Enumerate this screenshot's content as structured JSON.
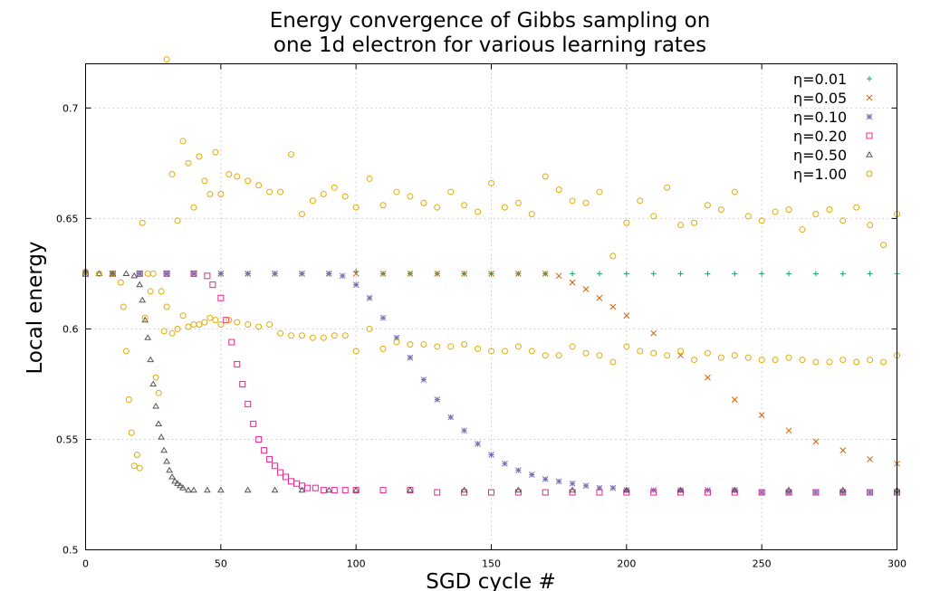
{
  "chart_data": {
    "type": "scatter",
    "title_lines": [
      "Energy convergence of Gibbs sampling on",
      "one 1d electron for various learning rates"
    ],
    "xlabel": "SGD cycle #",
    "ylabel": "Local energy",
    "xlim": [
      0,
      300
    ],
    "ylim": [
      0.5,
      0.72
    ],
    "x_ticks": [
      0,
      50,
      100,
      150,
      200,
      250,
      300
    ],
    "y_ticks": [
      0.5,
      0.55,
      0.6,
      0.65,
      0.7
    ],
    "x_tick_labels": [
      "0",
      "50",
      "100",
      "150",
      "200",
      "250",
      "300"
    ],
    "y_tick_labels": [
      "0.5",
      "0.55",
      "0.6",
      "0.65",
      "0.7"
    ],
    "grid": true,
    "legend_position": "top-right",
    "series": [
      {
        "name": "η=0.01",
        "marker": "plus",
        "color": "#1b9e77",
        "x": [
          0,
          10,
          20,
          30,
          40,
          50,
          60,
          70,
          80,
          90,
          100,
          110,
          120,
          130,
          140,
          150,
          160,
          170,
          180,
          190,
          200,
          210,
          220,
          230,
          240,
          250,
          260,
          270,
          280,
          290,
          300
        ],
        "y": [
          0.626,
          0.625,
          0.625,
          0.625,
          0.625,
          0.625,
          0.625,
          0.625,
          0.625,
          0.625,
          0.626,
          0.625,
          0.625,
          0.625,
          0.625,
          0.625,
          0.625,
          0.625,
          0.625,
          0.625,
          0.625,
          0.625,
          0.625,
          0.625,
          0.625,
          0.625,
          0.625,
          0.625,
          0.625,
          0.625,
          0.625
        ]
      },
      {
        "name": "η=0.05",
        "marker": "cross",
        "color": "#d95f02",
        "x": [
          0,
          10,
          20,
          30,
          40,
          50,
          60,
          70,
          80,
          90,
          100,
          110,
          120,
          130,
          140,
          150,
          160,
          170,
          175,
          180,
          185,
          190,
          195,
          200,
          210,
          220,
          230,
          240,
          250,
          260,
          270,
          280,
          290,
          300
        ],
        "y": [
          0.625,
          0.625,
          0.625,
          0.625,
          0.625,
          0.625,
          0.625,
          0.625,
          0.625,
          0.625,
          0.625,
          0.625,
          0.625,
          0.625,
          0.625,
          0.625,
          0.625,
          0.625,
          0.624,
          0.621,
          0.618,
          0.614,
          0.61,
          0.606,
          0.598,
          0.588,
          0.578,
          0.568,
          0.561,
          0.554,
          0.549,
          0.545,
          0.541,
          0.539
        ]
      },
      {
        "name": "η=0.10",
        "marker": "star",
        "color": "#7570b3",
        "x": [
          0,
          10,
          20,
          30,
          40,
          50,
          60,
          70,
          80,
          90,
          95,
          100,
          105,
          110,
          115,
          120,
          125,
          130,
          135,
          140,
          145,
          150,
          155,
          160,
          165,
          170,
          175,
          180,
          185,
          190,
          195,
          200,
          210,
          220,
          230,
          240,
          250,
          260,
          270,
          280,
          290,
          300
        ],
        "y": [
          0.625,
          0.625,
          0.625,
          0.625,
          0.625,
          0.625,
          0.625,
          0.625,
          0.625,
          0.625,
          0.624,
          0.62,
          0.614,
          0.605,
          0.596,
          0.587,
          0.577,
          0.568,
          0.56,
          0.554,
          0.548,
          0.543,
          0.539,
          0.536,
          0.534,
          0.532,
          0.531,
          0.53,
          0.529,
          0.528,
          0.528,
          0.527,
          0.527,
          0.527,
          0.527,
          0.527,
          0.526,
          0.526,
          0.526,
          0.526,
          0.526,
          0.526
        ]
      },
      {
        "name": "η=0.20",
        "marker": "square",
        "color": "#e7298a",
        "x": [
          0,
          10,
          20,
          30,
          40,
          45,
          47,
          50,
          52,
          54,
          56,
          58,
          60,
          62,
          64,
          66,
          68,
          70,
          72,
          74,
          76,
          78,
          80,
          82,
          85,
          88,
          92,
          96,
          100,
          110,
          120,
          130,
          140,
          150,
          160,
          170,
          180,
          190,
          200,
          210,
          220,
          230,
          240,
          250,
          260,
          270,
          280,
          290,
          300
        ],
        "y": [
          0.625,
          0.625,
          0.625,
          0.625,
          0.625,
          0.624,
          0.62,
          0.614,
          0.604,
          0.594,
          0.584,
          0.575,
          0.566,
          0.557,
          0.55,
          0.545,
          0.541,
          0.538,
          0.535,
          0.533,
          0.531,
          0.53,
          0.529,
          0.528,
          0.528,
          0.527,
          0.527,
          0.527,
          0.527,
          0.527,
          0.527,
          0.526,
          0.526,
          0.526,
          0.526,
          0.526,
          0.526,
          0.526,
          0.526,
          0.526,
          0.526,
          0.526,
          0.526,
          0.526,
          0.526,
          0.526,
          0.526,
          0.526,
          0.526
        ]
      },
      {
        "name": "η=0.50",
        "marker": "triangle",
        "color": "#555555",
        "x": [
          0,
          5,
          10,
          15,
          18,
          20,
          21,
          22,
          23,
          24,
          25,
          26,
          27,
          28,
          29,
          30,
          31,
          32,
          33,
          34,
          35,
          36,
          38,
          40,
          45,
          50,
          60,
          70,
          80,
          90,
          100,
          120,
          140,
          160,
          180,
          200,
          220,
          240,
          260,
          280,
          300
        ],
        "y": [
          0.626,
          0.625,
          0.625,
          0.625,
          0.624,
          0.62,
          0.613,
          0.604,
          0.596,
          0.586,
          0.575,
          0.565,
          0.557,
          0.551,
          0.545,
          0.54,
          0.536,
          0.533,
          0.531,
          0.53,
          0.529,
          0.528,
          0.527,
          0.527,
          0.527,
          0.527,
          0.527,
          0.527,
          0.527,
          0.527,
          0.527,
          0.527,
          0.527,
          0.527,
          0.527,
          0.527,
          0.527,
          0.527,
          0.527,
          0.527,
          0.527
        ]
      },
      {
        "name": "η=1.00",
        "marker": "circle",
        "color": "#e6ab02",
        "x": [
          0,
          5,
          10,
          13,
          14,
          15,
          16,
          17,
          18,
          19,
          20,
          21,
          22,
          23,
          24,
          25,
          26,
          27,
          28,
          29,
          30,
          30,
          32,
          32,
          34,
          34,
          36,
          36,
          38,
          38,
          40,
          40,
          42,
          42,
          44,
          44,
          46,
          46,
          48,
          48,
          50,
          50,
          53,
          53,
          56,
          56,
          60,
          60,
          64,
          64,
          68,
          68,
          72,
          72,
          76,
          76,
          80,
          80,
          84,
          84,
          88,
          88,
          92,
          92,
          96,
          96,
          100,
          100,
          105,
          105,
          110,
          110,
          115,
          115,
          120,
          120,
          125,
          125,
          130,
          130,
          135,
          135,
          140,
          140,
          145,
          145,
          150,
          150,
          155,
          155,
          160,
          160,
          165,
          165,
          170,
          170,
          175,
          175,
          180,
          180,
          185,
          185,
          190,
          190,
          195,
          195,
          200,
          200,
          205,
          205,
          210,
          210,
          215,
          215,
          220,
          220,
          225,
          225,
          230,
          230,
          235,
          235,
          240,
          240,
          245,
          245,
          250,
          250,
          255,
          255,
          260,
          260,
          265,
          265,
          270,
          270,
          275,
          275,
          280,
          280,
          285,
          285,
          290,
          290,
          295,
          295,
          300,
          300
        ],
        "y": [
          0.626,
          0.625,
          0.625,
          0.621,
          0.61,
          0.59,
          0.568,
          0.553,
          0.538,
          0.543,
          0.537,
          0.648,
          0.605,
          0.625,
          0.617,
          0.625,
          0.578,
          0.571,
          0.617,
          0.599,
          0.722,
          0.61,
          0.67,
          0.598,
          0.649,
          0.6,
          0.685,
          0.606,
          0.675,
          0.601,
          0.655,
          0.602,
          0.678,
          0.602,
          0.667,
          0.603,
          0.661,
          0.605,
          0.68,
          0.604,
          0.661,
          0.602,
          0.67,
          0.604,
          0.669,
          0.603,
          0.667,
          0.602,
          0.665,
          0.601,
          0.662,
          0.602,
          0.662,
          0.598,
          0.679,
          0.597,
          0.652,
          0.597,
          0.658,
          0.596,
          0.661,
          0.596,
          0.664,
          0.597,
          0.66,
          0.597,
          0.655,
          0.59,
          0.668,
          0.6,
          0.656,
          0.591,
          0.662,
          0.594,
          0.66,
          0.593,
          0.657,
          0.593,
          0.655,
          0.592,
          0.662,
          0.592,
          0.656,
          0.593,
          0.653,
          0.591,
          0.666,
          0.59,
          0.655,
          0.59,
          0.657,
          0.592,
          0.652,
          0.59,
          0.669,
          0.588,
          0.663,
          0.588,
          0.658,
          0.592,
          0.657,
          0.589,
          0.662,
          0.588,
          0.633,
          0.585,
          0.648,
          0.592,
          0.658,
          0.59,
          0.651,
          0.589,
          0.664,
          0.588,
          0.647,
          0.59,
          0.648,
          0.586,
          0.656,
          0.589,
          0.654,
          0.587,
          0.662,
          0.588,
          0.651,
          0.587,
          0.649,
          0.586,
          0.653,
          0.586,
          0.654,
          0.587,
          0.645,
          0.586,
          0.652,
          0.585,
          0.654,
          0.585,
          0.649,
          0.586,
          0.655,
          0.585,
          0.647,
          0.586,
          0.638,
          0.585,
          0.652,
          0.588
        ]
      }
    ]
  }
}
